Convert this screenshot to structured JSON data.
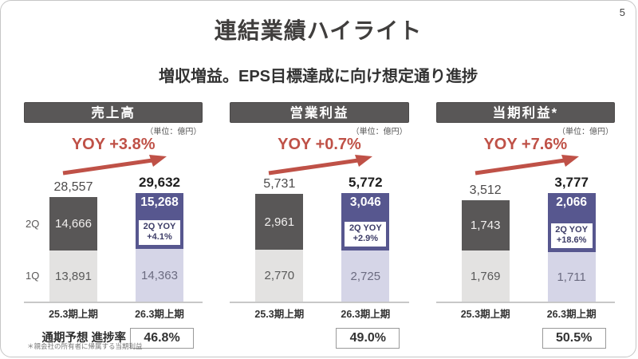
{
  "page": {
    "number": "5",
    "title": "連結業績ハイライト",
    "subtitle": "増収増益。EPS目標達成に向け想定通り進捗",
    "footnote": "＊親会社の所有者に帰属する当期利益"
  },
  "colors": {
    "header_bg": "#595757",
    "bar_dark": "#595757",
    "bar_light": "#e3e2e1",
    "bar_purple": "#57578f",
    "bar_lavender": "#d5d5e7",
    "accent_red": "#bf5147"
  },
  "chart_data": [
    {
      "type": "bar",
      "title": "売上高",
      "unit": "（単位：億円）",
      "yoy": "YOY +3.8%",
      "categories": [
        "25.3期上期",
        "26.3期上期"
      ],
      "row_labels": [
        "2Q",
        "1Q"
      ],
      "bars": [
        {
          "category": "25.3期上期",
          "total": 28557,
          "q2": 14666,
          "q1": 13891
        },
        {
          "category": "26.3期上期",
          "total": 29632,
          "q2": 15268,
          "q1": 14363,
          "q2_yoy": [
            "2Q YOY",
            "+4.1%"
          ]
        }
      ],
      "progress_label": "通期予想 進捗率",
      "progress_value": "46.8%"
    },
    {
      "type": "bar",
      "title": "営業利益",
      "unit": "（単位：億円）",
      "yoy": "YOY +0.7%",
      "categories": [
        "25.3期上期",
        "26.3期上期"
      ],
      "bars": [
        {
          "category": "25.3期上期",
          "total": 5731,
          "q2": 2961,
          "q1": 2770
        },
        {
          "category": "26.3期上期",
          "total": 5772,
          "q2": 3046,
          "q1": 2725,
          "q2_yoy": [
            "2Q YOY",
            "+2.9%"
          ]
        }
      ],
      "progress_value": "49.0%"
    },
    {
      "type": "bar",
      "title": "当期利益*",
      "unit": "（単位：億円）",
      "yoy": "YOY +7.6%",
      "categories": [
        "25.3期上期",
        "26.3期上期"
      ],
      "bars": [
        {
          "category": "25.3期上期",
          "total": 3512,
          "q2": 1743,
          "q1": 1769
        },
        {
          "category": "26.3期上期",
          "total": 3777,
          "q2": 2066,
          "q1": 1711,
          "q2_yoy": [
            "2Q YOY",
            "+18.6%"
          ]
        }
      ],
      "progress_value": "50.5%"
    }
  ]
}
